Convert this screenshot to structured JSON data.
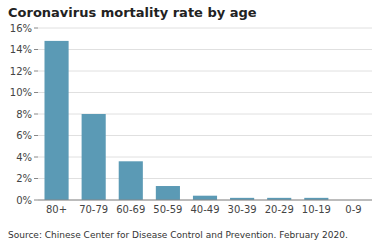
{
  "chart_data": {
    "type": "bar",
    "title": "Coronavirus mortality rate by age",
    "categories": [
      "80+",
      "70-79",
      "60-69",
      "50-59",
      "40-49",
      "30-39",
      "20-29",
      "10-19",
      "0-9"
    ],
    "values": [
      0.148,
      0.08,
      0.036,
      0.013,
      0.004,
      0.002,
      0.002,
      0.002,
      0.0
    ],
    "color": "#5b9ab5",
    "ylim": [
      0,
      0.16
    ],
    "yticks": [
      {
        "value": 0,
        "label": "0%"
      },
      {
        "value": 0.02,
        "label": "2%"
      },
      {
        "value": 0.04,
        "label": "4%"
      },
      {
        "value": 0.06,
        "label": "6%"
      },
      {
        "value": 0.08,
        "label": "8%"
      },
      {
        "value": 0.1,
        "label": "10%"
      },
      {
        "value": 0.12,
        "label": "12%"
      },
      {
        "value": 0.14,
        "label": "14%"
      },
      {
        "value": 0.16,
        "label": "16%"
      }
    ],
    "grid": true,
    "annotations": [
      "Source: Chinese Center for Disease Control and Prevention. February 2020."
    ]
  }
}
